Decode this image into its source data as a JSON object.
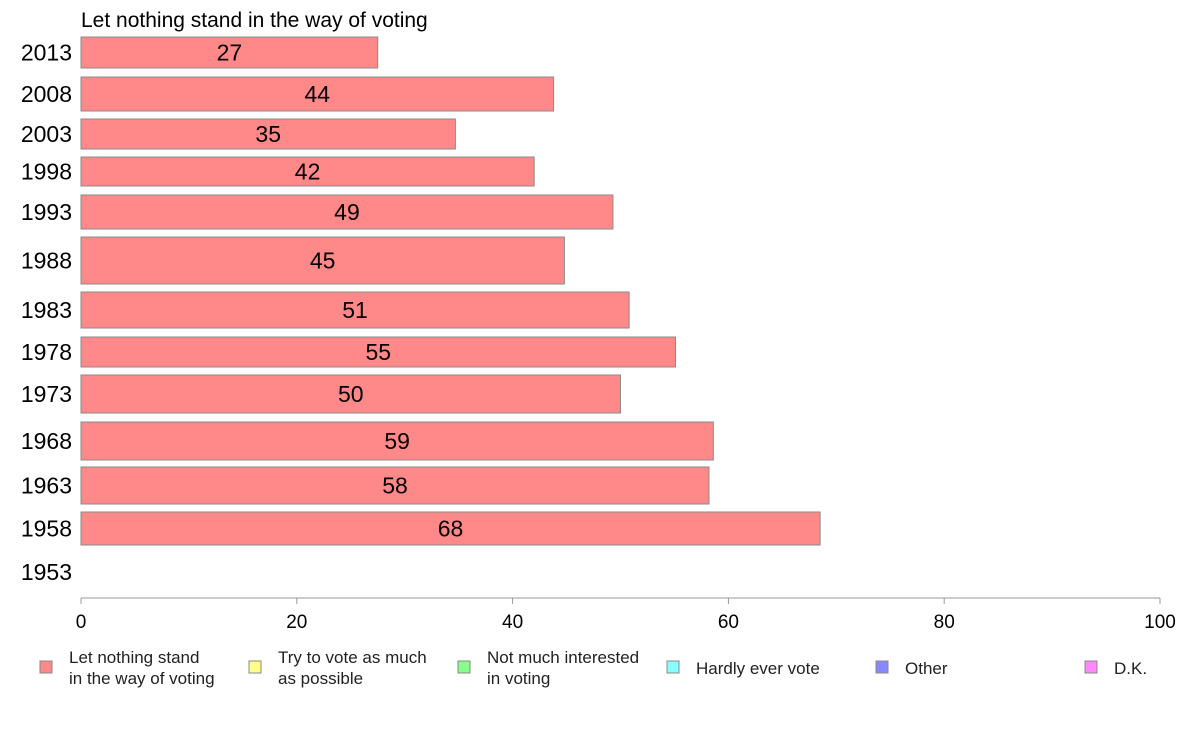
{
  "chart_data": {
    "type": "bar",
    "orientation": "horizontal",
    "title": "Let nothing stand in the way of voting",
    "categories": [
      "2013",
      "2008",
      "2003",
      "1998",
      "1993",
      "1988",
      "1983",
      "1978",
      "1973",
      "1968",
      "1963",
      "1958",
      "1953"
    ],
    "series": [
      {
        "name": "Let nothing stand in the way of voting",
        "values": [
          27.5,
          43.8,
          34.7,
          42.0,
          49.3,
          44.8,
          50.8,
          55.1,
          50.0,
          58.6,
          58.2,
          68.5,
          null
        ],
        "labels": [
          "27",
          "44",
          "35",
          "42",
          "49",
          "45",
          "51",
          "55",
          "50",
          "59",
          "58",
          "68",
          ""
        ],
        "color": "#ff8888"
      }
    ],
    "xlim": [
      0,
      100
    ],
    "xticks": [
      "0",
      "20",
      "40",
      "60",
      "80",
      "100"
    ],
    "grid": false,
    "legend_position": "bottom",
    "legend": [
      {
        "lines": [
          "Let nothing stand",
          "in the way of voting"
        ],
        "color": "#ff8888"
      },
      {
        "lines": [
          "Try to vote as much",
          "as possible"
        ],
        "color": "#ffff88"
      },
      {
        "lines": [
          "Not much interested",
          "in voting"
        ],
        "color": "#88ff88"
      },
      {
        "lines": [
          "Hardly ever vote"
        ],
        "color": "#88ffff"
      },
      {
        "lines": [
          "Other"
        ],
        "color": "#8888ff"
      },
      {
        "lines": [
          "D.K."
        ],
        "color": "#ff88ff"
      }
    ]
  }
}
